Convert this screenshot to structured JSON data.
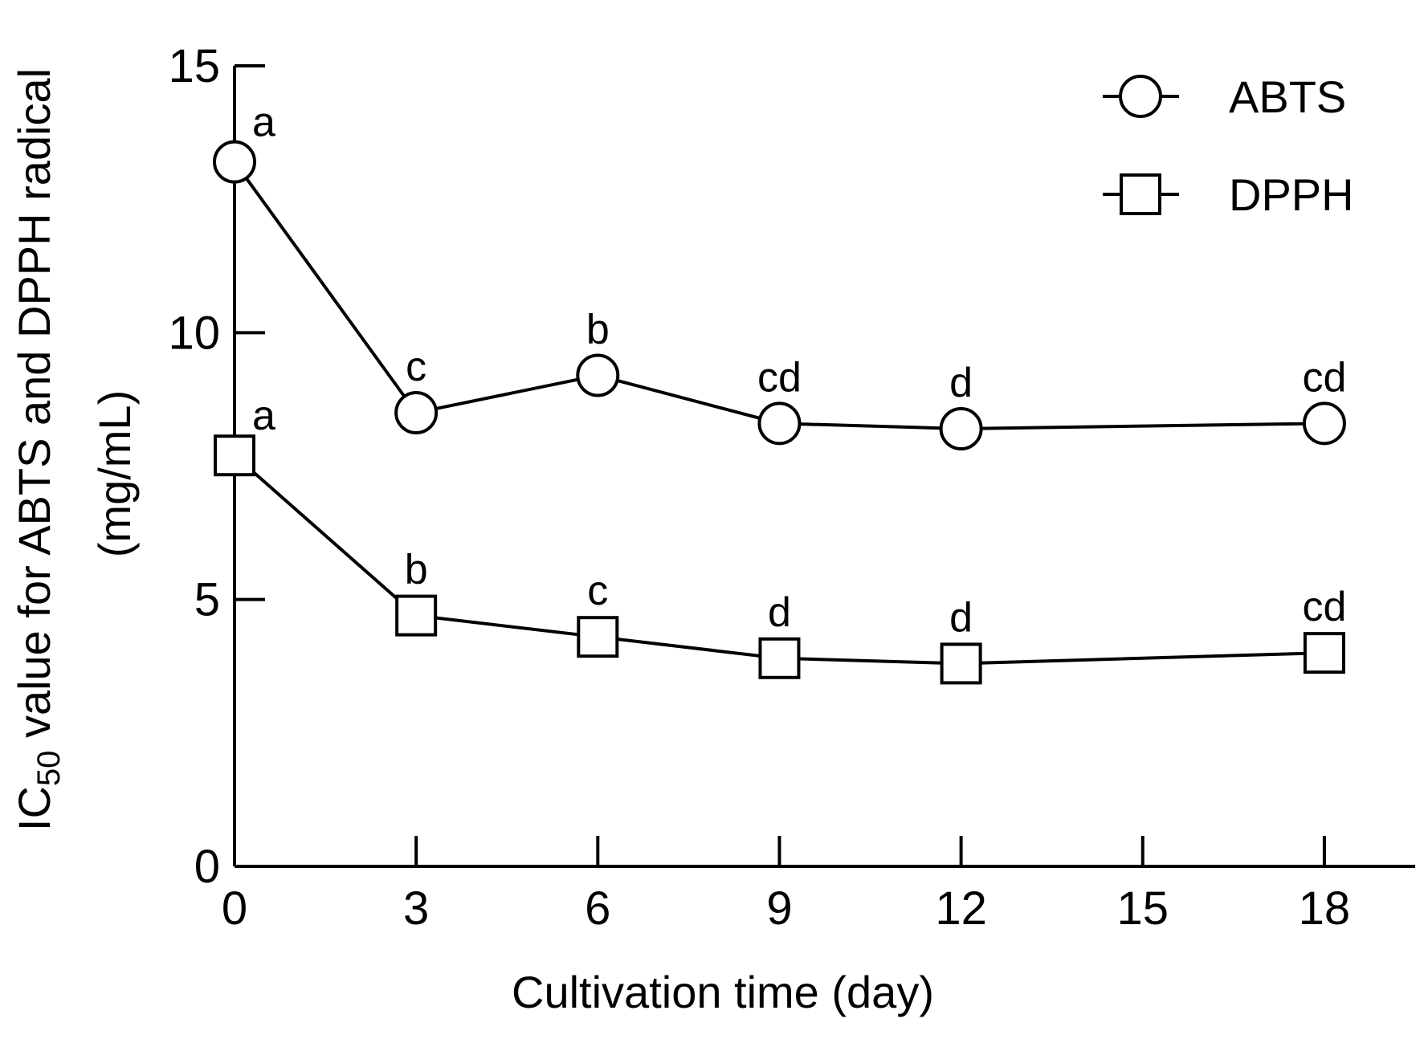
{
  "chart_data": {
    "type": "line",
    "title": "",
    "xlabel": "Cultivation time (day)",
    "ylabel": {
      "prefix": "IC",
      "subscript": "50",
      "rest": " value for ABTS and DPPH radical",
      "unit": "(mg/mL)"
    },
    "xlim": [
      0,
      19.5
    ],
    "ylim": [
      0,
      15
    ],
    "xticks": [
      0,
      3,
      6,
      9,
      12,
      15,
      18
    ],
    "yticks": [
      0,
      5,
      10,
      15
    ],
    "legend_position": "top-right",
    "series": [
      {
        "name": "ABTS",
        "marker": "circle",
        "x": [
          0,
          3,
          6,
          9,
          12,
          18
        ],
        "y": [
          13.2,
          8.5,
          9.2,
          8.3,
          8.2,
          8.3
        ],
        "labels": [
          "a",
          "c",
          "b",
          "cd",
          "d",
          "cd"
        ]
      },
      {
        "name": "DPPH",
        "marker": "square",
        "x": [
          0,
          3,
          6,
          9,
          12,
          18
        ],
        "y": [
          7.7,
          4.7,
          4.3,
          3.9,
          3.8,
          4.0
        ],
        "labels": [
          "a",
          "b",
          "c",
          "d",
          "d",
          "cd"
        ]
      }
    ]
  }
}
